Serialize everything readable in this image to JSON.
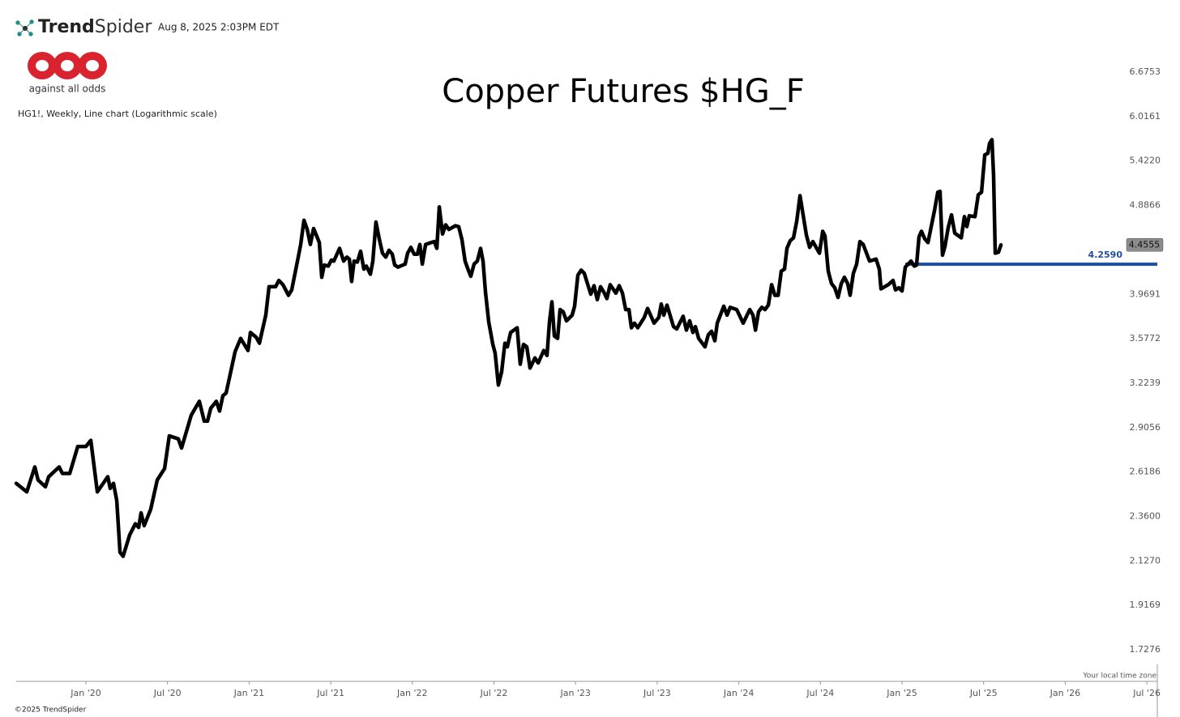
{
  "header": {
    "brand": {
      "bold": "Trend",
      "light": "Spider"
    },
    "timestamp": "Aug 8, 2025 2:03PM EDT",
    "logo_text": "against all odds"
  },
  "footer": {
    "copyright": "©2025 TrendSpider",
    "timezone_note": "Your local time zone"
  },
  "chart_data": {
    "type": "line",
    "title": "Copper Futures $HG_F",
    "subtitle": "HG1!, Weekly, Line chart (Logarithmic scale)",
    "log_scale": true,
    "grid": false,
    "xlim": [
      2019.573,
      2026.564
    ],
    "ylim": [
      1.6,
      7.1
    ],
    "xticks": [
      {
        "value": 2020,
        "label": "Jan '20"
      },
      {
        "value": 2020.5,
        "label": "Jul '20"
      },
      {
        "value": 2021,
        "label": "Jan '21"
      },
      {
        "value": 2021.5,
        "label": "Jul '21"
      },
      {
        "value": 2022,
        "label": "Jan '22"
      },
      {
        "value": 2022.5,
        "label": "Jul '22"
      },
      {
        "value": 2023,
        "label": "Jan '23"
      },
      {
        "value": 2023.5,
        "label": "Jul '23"
      },
      {
        "value": 2024,
        "label": "Jan '24"
      },
      {
        "value": 2024.5,
        "label": "Jul '24"
      },
      {
        "value": 2025,
        "label": "Jan '25"
      },
      {
        "value": 2025.5,
        "label": "Jul '25"
      },
      {
        "value": 2026,
        "label": "Jan '26"
      },
      {
        "value": 2026.5,
        "label": "Jul '26"
      }
    ],
    "yticks": [
      6.6753,
      6.0161,
      {
        "value": 5.422,
        "label": "5.4220"
      },
      4.8866,
      3.9691,
      3.5772,
      3.2239,
      2.9056,
      2.6186,
      {
        "value": 2.36,
        "label": "2.3600"
      },
      {
        "value": 2.127,
        "label": "2.1270"
      },
      1.9169,
      1.7276
    ],
    "levels": [
      {
        "value": 4.259,
        "label": "4.2590",
        "start": 2025.02,
        "color": "#1f4e9c"
      }
    ],
    "last_price_color": "#8c8c8c",
    "x": [
      2019.573,
      2019.638,
      2019.687,
      2019.707,
      2019.752,
      2019.772,
      2019.836,
      2019.856,
      2019.901,
      2019.95,
      2020.0,
      2020.03,
      2020.07,
      2020.134,
      2020.149,
      2020.169,
      2020.189,
      2020.209,
      2020.228,
      2020.268,
      2020.303,
      2020.323,
      2020.338,
      2020.357,
      2020.397,
      2020.437,
      2020.482,
      2020.511,
      2020.566,
      2020.586,
      2020.645,
      2020.665,
      2020.695,
      2020.725,
      2020.745,
      2020.765,
      2020.799,
      2020.819,
      2020.839,
      2020.859,
      2020.914,
      2020.948,
      2020.993,
      2021.008,
      2021.043,
      2021.063,
      2021.102,
      2021.122,
      2021.162,
      2021.182,
      2021.207,
      2021.241,
      2021.261,
      2021.301,
      2021.316,
      2021.336,
      2021.356,
      2021.375,
      2021.395,
      2021.43,
      2021.445,
      2021.46,
      2021.485,
      2021.504,
      2021.519,
      2021.554,
      2021.579,
      2021.599,
      2021.614,
      2021.628,
      2021.643,
      2021.663,
      2021.683,
      2021.703,
      2021.718,
      2021.743,
      2021.758,
      2021.777,
      2021.797,
      2021.817,
      2021.837,
      2021.857,
      2021.877,
      2021.892,
      2021.912,
      2021.956,
      2021.971,
      2021.991,
      2022.011,
      2022.031,
      2022.046,
      2022.061,
      2022.081,
      2022.115,
      2022.135,
      2022.15,
      2022.165,
      2022.185,
      2022.204,
      2022.224,
      2022.264,
      2022.284,
      2022.304,
      2022.323,
      2022.343,
      2022.358,
      2022.378,
      2022.398,
      2022.418,
      2022.433,
      2022.448,
      2022.468,
      2022.493,
      2022.507,
      2022.527,
      2022.547,
      2022.567,
      2022.582,
      2022.602,
      2022.642,
      2022.661,
      2022.681,
      2022.701,
      2022.721,
      2022.751,
      2022.771,
      2022.805,
      2022.825,
      2022.84,
      2022.855,
      2022.87,
      2022.89,
      2022.905,
      2022.924,
      2022.944,
      2022.979,
      2022.994,
      2023.014,
      2023.034,
      2023.053,
      2023.093,
      2023.113,
      2023.133,
      2023.153,
      2023.173,
      2023.192,
      2023.212,
      2023.247,
      2023.267,
      2023.287,
      2023.307,
      2023.327,
      2023.342,
      2023.361,
      2023.381,
      2023.421,
      2023.441,
      2023.481,
      2023.51,
      2023.525,
      2023.54,
      2023.56,
      2023.6,
      2023.62,
      2023.659,
      2023.679,
      2023.699,
      2023.719,
      2023.734,
      2023.754,
      2023.793,
      2023.813,
      2023.833,
      2023.853,
      2023.868,
      2023.908,
      2023.928,
      2023.947,
      2023.987,
      2024.027,
      2024.067,
      2024.087,
      2024.102,
      2024.121,
      2024.141,
      2024.161,
      2024.181,
      2024.201,
      2024.221,
      2024.241,
      2024.26,
      2024.28,
      2024.295,
      2024.315,
      2024.335,
      2024.355,
      2024.375,
      2024.394,
      2024.414,
      2024.434,
      2024.454,
      2024.494,
      2024.514,
      2024.528,
      2024.548,
      2024.568,
      2024.588,
      2024.608,
      2024.628,
      2024.647,
      2024.667,
      2024.682,
      2024.702,
      2024.722,
      2024.742,
      2024.762,
      2024.801,
      2024.841,
      2024.861,
      2024.871,
      2024.916,
      2024.945,
      2024.96,
      2024.98,
      2025.0,
      2025.02,
      2025.055,
      2025.075,
      2025.089,
      2025.104,
      2025.119,
      2025.139,
      2025.159,
      2025.199,
      2025.219,
      2025.233,
      2025.248,
      2025.263,
      2025.283,
      2025.303,
      2025.323,
      2025.363,
      2025.382,
      2025.397,
      2025.412,
      2025.447,
      2025.467,
      2025.487,
      2025.507,
      2025.526,
      2025.536,
      2025.551,
      2025.561,
      2025.571,
      2025.591,
      2025.606
    ],
    "series": [
      {
        "name": "HG1!",
        "color": "#000000",
        "values": [
          2.55,
          2.5,
          2.65,
          2.57,
          2.53,
          2.59,
          2.65,
          2.61,
          2.61,
          2.78,
          2.78,
          2.82,
          2.5,
          2.59,
          2.52,
          2.55,
          2.45,
          2.17,
          2.15,
          2.26,
          2.32,
          2.3,
          2.38,
          2.31,
          2.4,
          2.57,
          2.64,
          2.85,
          2.83,
          2.77,
          2.99,
          3.03,
          3.09,
          2.95,
          2.95,
          3.04,
          3.09,
          3.02,
          3.13,
          3.15,
          3.47,
          3.58,
          3.48,
          3.63,
          3.59,
          3.54,
          3.78,
          4.04,
          4.04,
          4.1,
          4.06,
          3.96,
          4.01,
          4.33,
          4.46,
          4.72,
          4.62,
          4.46,
          4.63,
          4.48,
          4.13,
          4.25,
          4.24,
          4.3,
          4.29,
          4.42,
          4.29,
          4.33,
          4.31,
          4.09,
          4.29,
          4.28,
          4.39,
          4.21,
          4.24,
          4.16,
          4.29,
          4.7,
          4.52,
          4.37,
          4.33,
          4.4,
          4.36,
          4.25,
          4.23,
          4.26,
          4.37,
          4.43,
          4.36,
          4.36,
          4.46,
          4.26,
          4.46,
          4.48,
          4.49,
          4.42,
          4.87,
          4.57,
          4.67,
          4.62,
          4.66,
          4.65,
          4.51,
          4.29,
          4.2,
          4.14,
          4.26,
          4.29,
          4.42,
          4.29,
          3.99,
          3.72,
          3.53,
          3.46,
          3.21,
          3.31,
          3.54,
          3.51,
          3.63,
          3.67,
          3.37,
          3.53,
          3.51,
          3.34,
          3.42,
          3.38,
          3.48,
          3.44,
          3.72,
          3.9,
          3.6,
          3.58,
          3.83,
          3.81,
          3.73,
          3.78,
          3.86,
          4.15,
          4.2,
          4.17,
          3.97,
          4.05,
          3.92,
          4.04,
          3.99,
          3.93,
          4.06,
          3.98,
          4.05,
          3.98,
          3.83,
          3.83,
          3.67,
          3.71,
          3.67,
          3.76,
          3.84,
          3.71,
          3.76,
          3.88,
          3.78,
          3.87,
          3.68,
          3.66,
          3.77,
          3.65,
          3.73,
          3.63,
          3.68,
          3.58,
          3.51,
          3.61,
          3.64,
          3.56,
          3.71,
          3.86,
          3.78,
          3.85,
          3.83,
          3.71,
          3.83,
          3.78,
          3.65,
          3.81,
          3.85,
          3.83,
          3.87,
          4.06,
          3.96,
          3.96,
          4.19,
          4.21,
          4.42,
          4.5,
          4.53,
          4.71,
          5.0,
          4.78,
          4.56,
          4.43,
          4.49,
          4.37,
          4.6,
          4.55,
          4.19,
          4.07,
          4.03,
          3.94,
          4.07,
          4.13,
          4.07,
          3.96,
          4.17,
          4.26,
          4.49,
          4.46,
          4.29,
          4.31,
          4.21,
          4.02,
          4.06,
          4.1,
          4.01,
          4.03,
          4.0,
          4.23,
          4.29,
          4.24,
          4.25,
          4.54,
          4.6,
          4.52,
          4.48,
          4.83,
          5.04,
          5.05,
          4.35,
          4.44,
          4.64,
          4.78,
          4.58,
          4.53,
          4.76,
          4.65,
          4.77,
          4.76,
          5.01,
          5.04,
          5.5,
          5.52,
          5.65,
          5.7,
          5.24,
          4.37,
          4.38,
          4.4555
        ]
      }
    ]
  }
}
